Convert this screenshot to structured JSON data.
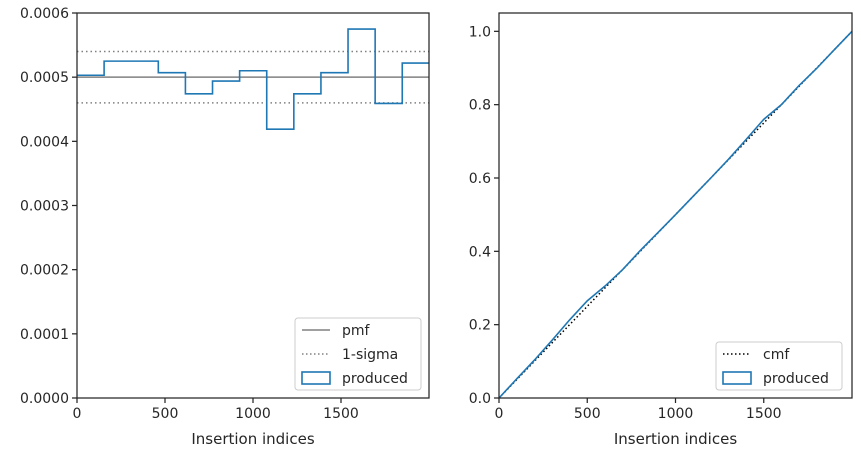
{
  "chart_data": [
    {
      "type": "line",
      "xlabel": "Insertion indices",
      "ylabel": "",
      "xlim": [
        0,
        2000
      ],
      "ylim": [
        0,
        0.0006
      ],
      "xticks": [
        "0",
        "500",
        "1000",
        "1500"
      ],
      "yticks": [
        "0.0000",
        "0.0001",
        "0.0002",
        "0.0003",
        "0.0004",
        "0.0005",
        "0.0006"
      ],
      "legend_position": "lower right",
      "series": [
        {
          "name": "pmf",
          "style": "solid",
          "color": "#808080",
          "y": 0.0005
        },
        {
          "name": "1-sigma",
          "style": "dotted",
          "color": "#808080",
          "y_values": [
            0.00054,
            0.00046
          ]
        },
        {
          "name": "produced",
          "style": "step",
          "color": "#1f77b4",
          "bin_edges": [
            0,
            154,
            462,
            616,
            770,
            924,
            1078,
            1232,
            1386,
            1540,
            1694,
            1848,
            2000
          ],
          "values": [
            0.000503,
            0.000525,
            0.000507,
            0.000474,
            0.000494,
            0.00051,
            0.000419,
            0.000474,
            0.000507,
            0.000575,
            0.000459,
            0.000522
          ]
        }
      ]
    },
    {
      "type": "line",
      "xlabel": "Insertion indices",
      "ylabel": "",
      "xlim": [
        0,
        2000
      ],
      "ylim": [
        0,
        1.05
      ],
      "xticks": [
        "0",
        "500",
        "1000",
        "1500"
      ],
      "yticks": [
        "0.0",
        "0.2",
        "0.4",
        "0.6",
        "0.8",
        "1.0"
      ],
      "legend_position": "lower right",
      "series": [
        {
          "name": "cmf",
          "style": "dotted",
          "color": "#000000",
          "x": [
            0,
            2000
          ],
          "y": [
            0,
            1.0
          ]
        },
        {
          "name": "produced",
          "style": "step",
          "color": "#1f77b4",
          "x": [
            0,
            100,
            200,
            300,
            400,
            500,
            600,
            700,
            800,
            900,
            1000,
            1100,
            1200,
            1300,
            1400,
            1500,
            1600,
            1700,
            1800,
            1900,
            2000
          ],
          "y": [
            0,
            0.052,
            0.103,
            0.157,
            0.213,
            0.265,
            0.305,
            0.35,
            0.402,
            0.451,
            0.5,
            0.55,
            0.6,
            0.651,
            0.705,
            0.76,
            0.8,
            0.852,
            0.899,
            0.95,
            1.0
          ]
        }
      ]
    }
  ]
}
